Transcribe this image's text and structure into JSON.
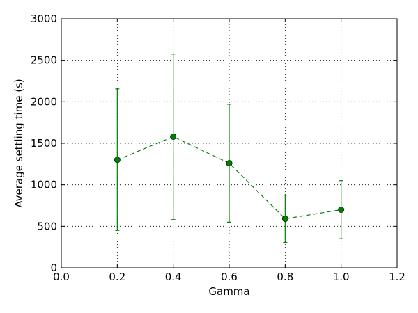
{
  "chart_data": {
    "type": "line",
    "title": "",
    "xlabel": "Gamma",
    "ylabel": "Average settling time (s)",
    "xlim": [
      0.0,
      1.2
    ],
    "ylim": [
      0,
      3000
    ],
    "xticks": [
      0.0,
      0.2,
      0.4,
      0.6,
      0.8,
      1.0,
      1.2
    ],
    "yticks": [
      0,
      500,
      1000,
      1500,
      2000,
      2500,
      3000
    ],
    "xtick_labels": [
      "0.0",
      "0.2",
      "0.4",
      "0.6",
      "0.8",
      "1.0",
      "1.2"
    ],
    "ytick_labels": [
      "0",
      "500",
      "1000",
      "1500",
      "2000",
      "2500",
      "3000"
    ],
    "grid": true,
    "series": [
      {
        "color": "#007f00",
        "line_style": "dashed",
        "marker": "circle",
        "x": [
          0.2,
          0.4,
          0.6,
          0.8,
          1.0
        ],
        "y": [
          1300,
          1580,
          1260,
          590,
          700
        ],
        "err_low": [
          450,
          580,
          550,
          305,
          350
        ],
        "err_high": [
          2155,
          2575,
          1970,
          875,
          1050
        ]
      }
    ]
  }
}
